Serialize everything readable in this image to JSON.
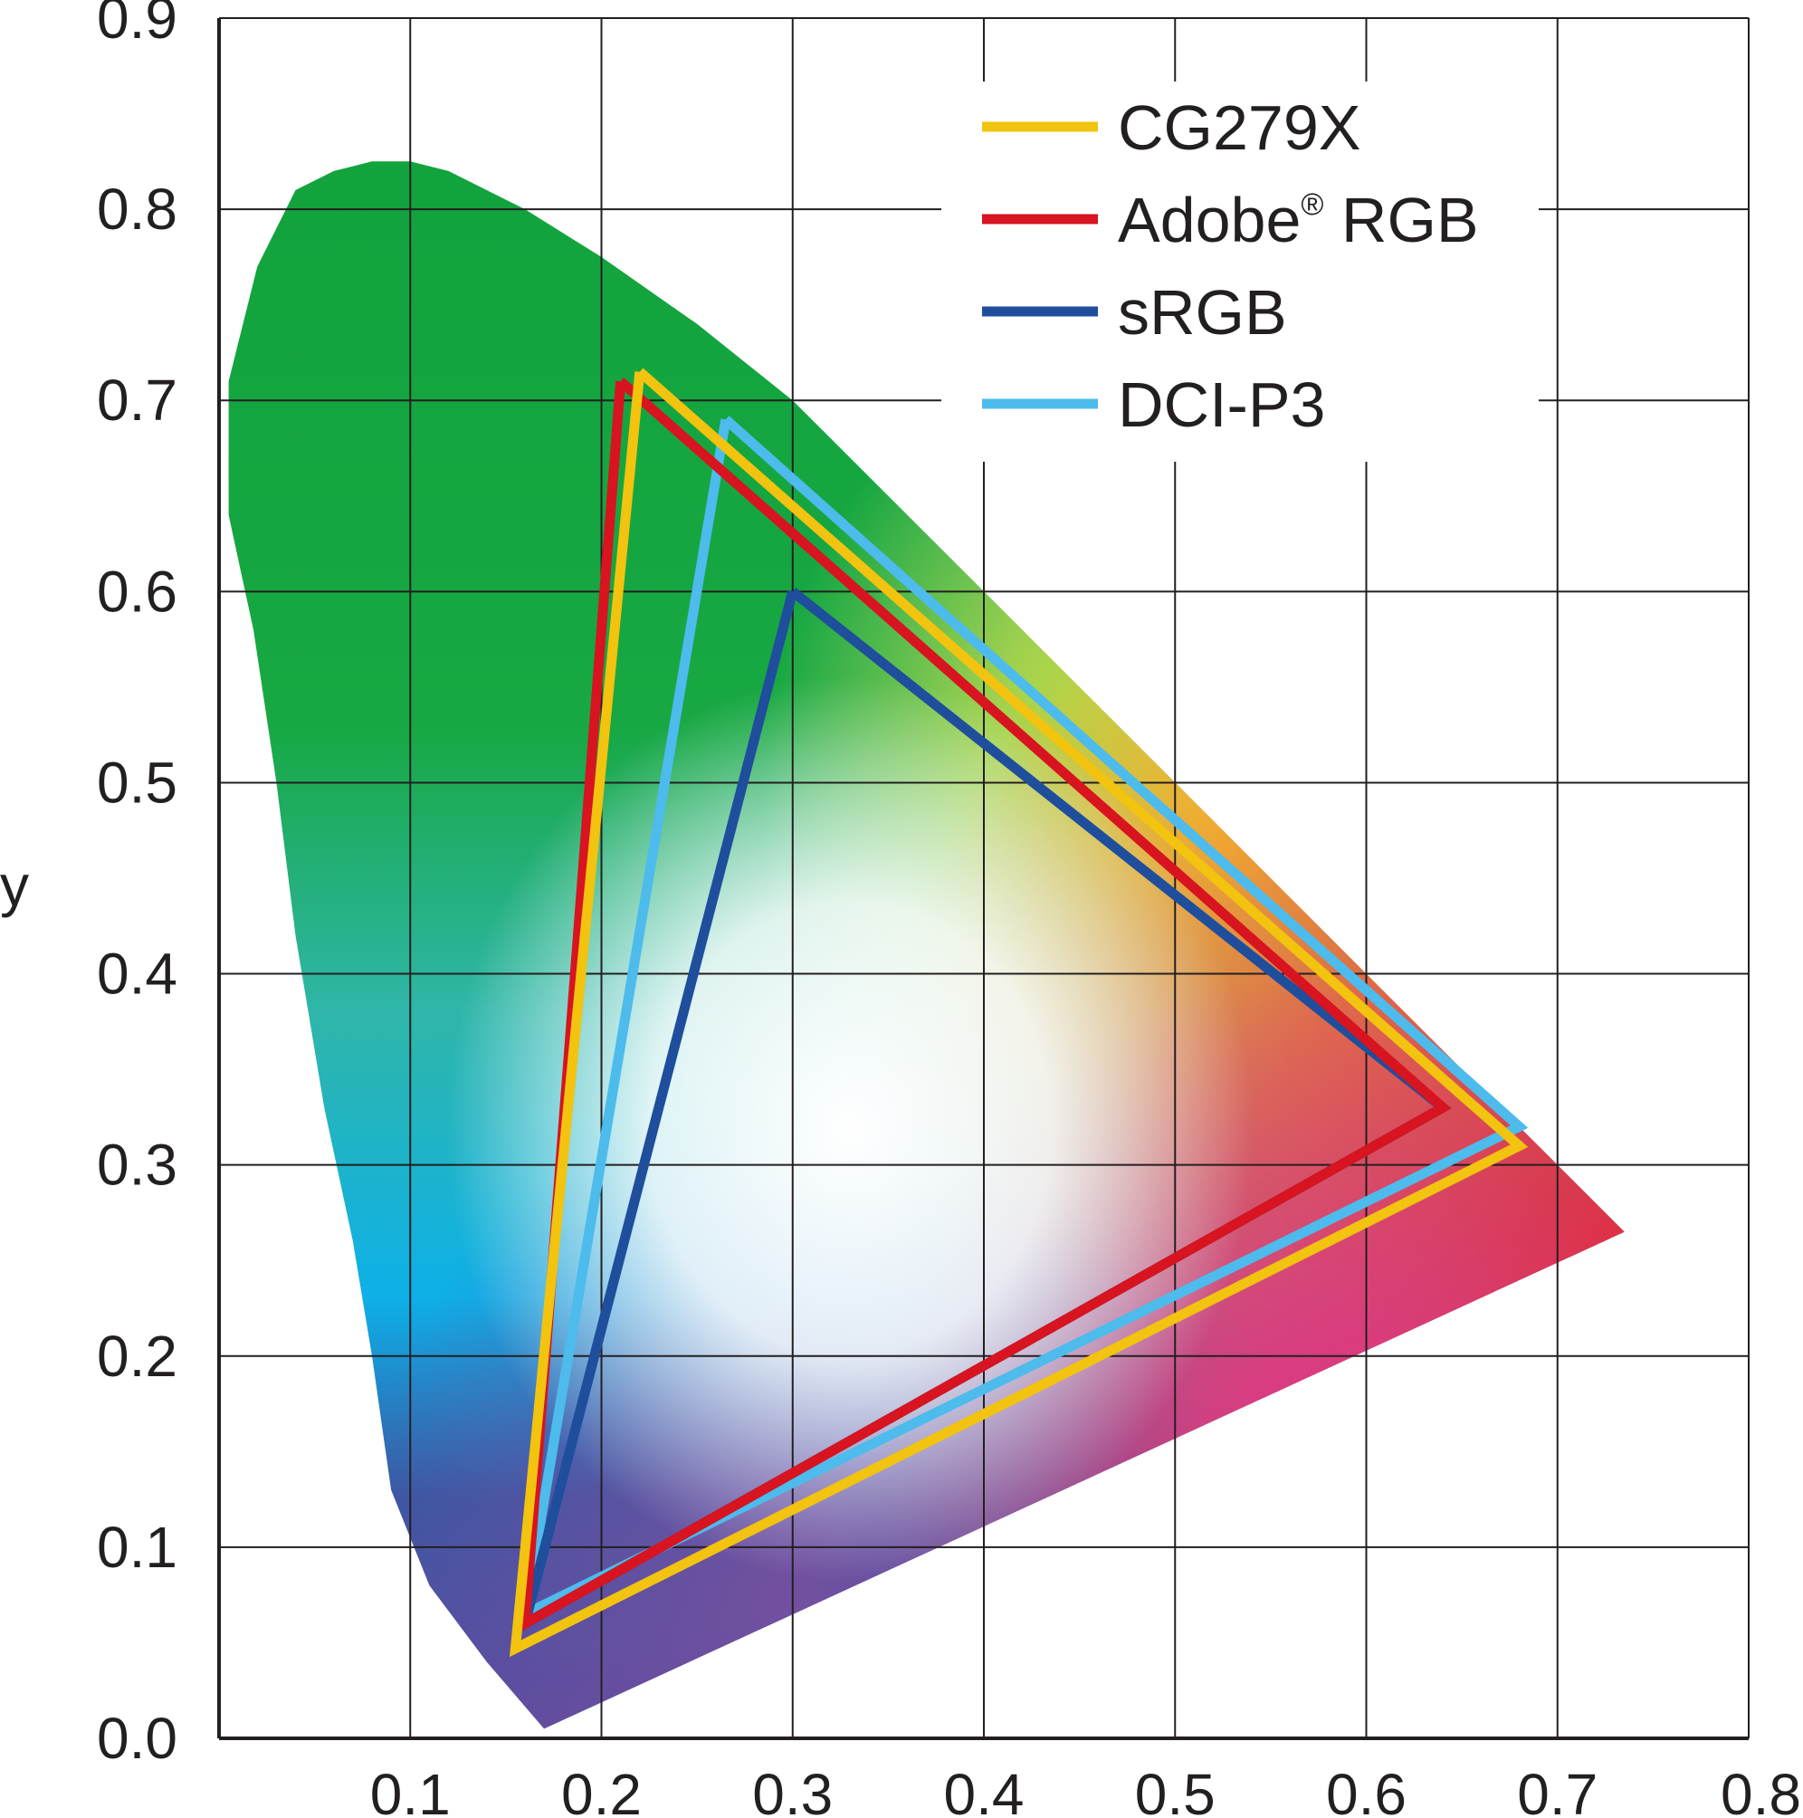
{
  "chart_data": {
    "type": "line",
    "title": "",
    "xlabel": "",
    "ylabel": "y",
    "xlim": [
      0.0,
      0.8
    ],
    "ylim": [
      0.0,
      0.9
    ],
    "x_ticks": [
      "0.1",
      "0.2",
      "0.3",
      "0.4",
      "0.5",
      "0.6",
      "0.7",
      "0.8"
    ],
    "y_ticks": [
      "0.0",
      "0.1",
      "0.2",
      "0.3",
      "0.4",
      "0.5",
      "0.6",
      "0.7",
      "0.8",
      "0.9"
    ],
    "grid": true,
    "legend_position": "top-right",
    "spectral_locus": [
      [
        0.17,
        0.005
      ],
      [
        0.14,
        0.04
      ],
      [
        0.11,
        0.08
      ],
      [
        0.09,
        0.13
      ],
      [
        0.08,
        0.2
      ],
      [
        0.07,
        0.26
      ],
      [
        0.055,
        0.33
      ],
      [
        0.04,
        0.42
      ],
      [
        0.03,
        0.5
      ],
      [
        0.018,
        0.58
      ],
      [
        0.005,
        0.64
      ],
      [
        0.005,
        0.71
      ],
      [
        0.02,
        0.77
      ],
      [
        0.04,
        0.81
      ],
      [
        0.06,
        0.82
      ],
      [
        0.08,
        0.825
      ],
      [
        0.1,
        0.825
      ],
      [
        0.12,
        0.82
      ],
      [
        0.16,
        0.8
      ],
      [
        0.2,
        0.775
      ],
      [
        0.25,
        0.74
      ],
      [
        0.3,
        0.7
      ],
      [
        0.4,
        0.6
      ],
      [
        0.5,
        0.5
      ],
      [
        0.6,
        0.4
      ],
      [
        0.65,
        0.35
      ],
      [
        0.735,
        0.265
      ]
    ],
    "series": [
      {
        "name": "CG279X",
        "label_main": "CG279X",
        "label_sup": "",
        "label_rest": "",
        "color": "#f2c30f",
        "x": [
          0.22,
          0.68,
          0.155,
          0.22
        ],
        "y": [
          0.715,
          0.31,
          0.047,
          0.715
        ]
      },
      {
        "name": "Adobe® RGB",
        "label_main": "Adobe",
        "label_sup": "®",
        "label_rest": " RGB",
        "color": "#d7141f",
        "x": [
          0.21,
          0.64,
          0.16,
          0.21
        ],
        "y": [
          0.71,
          0.33,
          0.06,
          0.71
        ]
      },
      {
        "name": "sRGB",
        "label_main": "sRGB",
        "label_sup": "",
        "label_rest": "",
        "color": "#1f4e9c",
        "x": [
          0.3,
          0.64,
          0.16,
          0.3
        ],
        "y": [
          0.6,
          0.33,
          0.06,
          0.6
        ]
      },
      {
        "name": "DCI-P3",
        "label_main": "DCI-P3",
        "label_sup": "",
        "label_rest": "",
        "color": "#4dbbec",
        "x": [
          0.265,
          0.68,
          0.16,
          0.265
        ],
        "y": [
          0.69,
          0.32,
          0.065,
          0.69
        ]
      }
    ]
  }
}
